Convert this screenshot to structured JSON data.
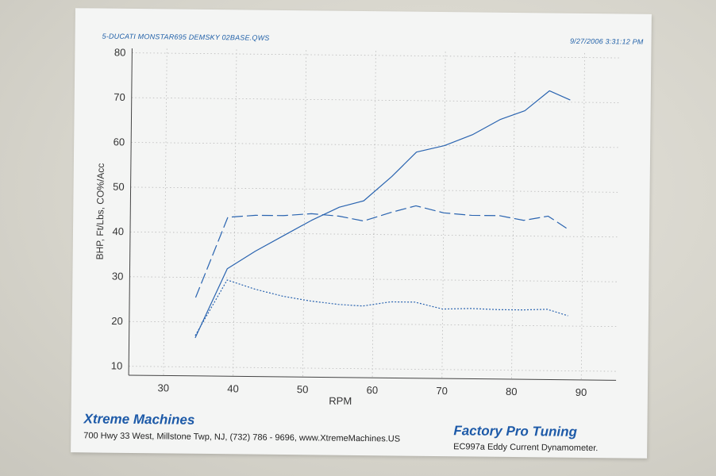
{
  "header": {
    "left": "5-DUCATI  MONSTAR695  DEMSKY  02BASE.QWS",
    "right": "9/27/2006 3:31:12 PM"
  },
  "footer": {
    "brand_left": "Xtreme Machines",
    "address": "700 Hwy 33 West, Millstone Twp, NJ, (732) 786 - 9696, www.XtremeMachines.US",
    "brand_right": "Factory Pro Tuning",
    "dyno": "EC997a  Eddy Current Dynamometer."
  },
  "colors": {
    "line": "#2a64b0",
    "grid": "#b9b9b9",
    "axis": "#444444",
    "brand": "#1d5aa8"
  },
  "chart_data": {
    "type": "line",
    "xlabel": "RPM",
    "ylabel": "BHP, Ft/Lbs, CO%/Acc",
    "xlim": [
      25,
      95
    ],
    "ylim": [
      8,
      81
    ],
    "xticks": [
      30,
      40,
      50,
      60,
      70,
      80,
      90
    ],
    "yticks": [
      10,
      20,
      30,
      40,
      50,
      60,
      70,
      80
    ],
    "grid": true,
    "series": [
      {
        "style": "solid",
        "x": [
          34.5,
          39,
          43,
          47,
          51,
          55,
          58.5,
          62.5,
          66,
          70,
          74,
          78,
          81.5,
          85,
          88
        ],
        "y": [
          16.5,
          32,
          36,
          39.5,
          43,
          46,
          47.5,
          53,
          58.5,
          60,
          62.5,
          66,
          68,
          72.5,
          70.5
        ]
      },
      {
        "style": "dashed",
        "x": [
          34.5,
          39,
          43,
          47,
          51,
          55,
          58.5,
          62.5,
          66,
          70,
          74,
          78,
          81.5,
          85,
          88
        ],
        "y": [
          25.5,
          43.5,
          44,
          44,
          44.5,
          44,
          43,
          45,
          46.5,
          45,
          44.5,
          44.5,
          43.5,
          44.5,
          41.5
        ]
      },
      {
        "style": "dotted",
        "x": [
          34.5,
          39,
          43,
          47,
          51,
          55,
          58.5,
          62.5,
          66,
          70,
          74,
          78,
          81.5,
          85,
          88
        ],
        "y": [
          17,
          29.5,
          27.5,
          26,
          25,
          24.3,
          24,
          25,
          25,
          23.5,
          23.7,
          23.5,
          23.5,
          23.7,
          22.3
        ]
      }
    ]
  }
}
